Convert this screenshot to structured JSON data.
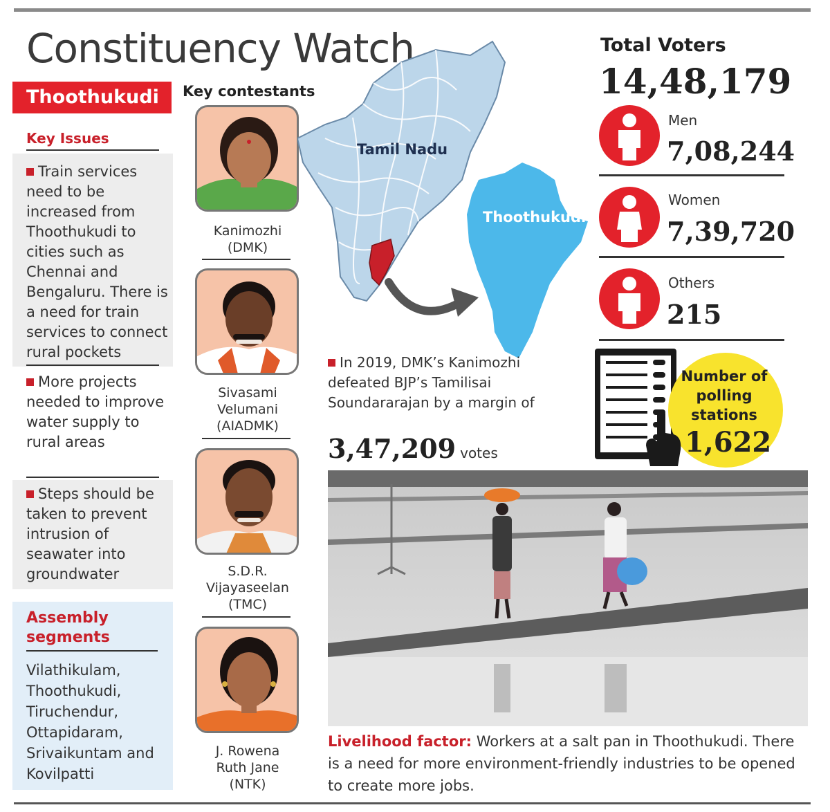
{
  "title": "Constituency Watch",
  "constituency": "Thoothukudi",
  "key_issues": {
    "heading": "Key Issues",
    "items": [
      "Train services need to be increased from Thoothukudi to cities such as Chennai and Bengaluru. There is a need for train services to connect rural pockets",
      "More projects needed to improve water supply to rural areas",
      "Steps should be taken to prevent intrusion of seawater into groundwater"
    ]
  },
  "assembly_segments": {
    "heading": "Assembly segments",
    "text": "Vilathikulam, Thoothukudi, Tiruchendur, Ottapidaram, Srivaikuntam and Kovilpatti"
  },
  "contestants": {
    "heading": "Key contestants",
    "items": [
      {
        "name": "Kanimozhi",
        "party": "(DMK)"
      },
      {
        "name": "Sivasami Velumani",
        "party": "(AIADMK)"
      },
      {
        "name": "S.D.R. Vijayaseelan",
        "party": "(TMC)"
      },
      {
        "name": "J. Rowena Ruth Jane",
        "party": "(NTK)"
      }
    ]
  },
  "map": {
    "state_label": "Tamil Nadu",
    "district_label": "Thoothukudi",
    "state_color": "#bcd6ea",
    "district_color": "#4cb8ea",
    "highlight_color": "#c8202a"
  },
  "voters": {
    "total_label": "Total Voters",
    "total": "14,48,179",
    "men_label": "Men",
    "men": "7,08,244",
    "women_label": "Women",
    "women": "7,39,720",
    "others_label": "Others",
    "others": "215",
    "icon": "person-icon",
    "icon_color": "#e3222b"
  },
  "polling": {
    "label": "Number of polling stations",
    "value": "1,622",
    "circle_color": "#f8e32d"
  },
  "result_2019": {
    "text": "In 2019, DMK’s Kanimozhi defeated BJP’s Tamilisai Soundararajan by a margin of",
    "margin": "3,47,209",
    "unit": "votes"
  },
  "photo_caption": {
    "head": "Livelihood factor:",
    "text": " Workers at a salt pan in Thoothukudi. There is a need for more environment-friendly industries to be opened to create more jobs."
  },
  "accent_red": "#c8202a"
}
